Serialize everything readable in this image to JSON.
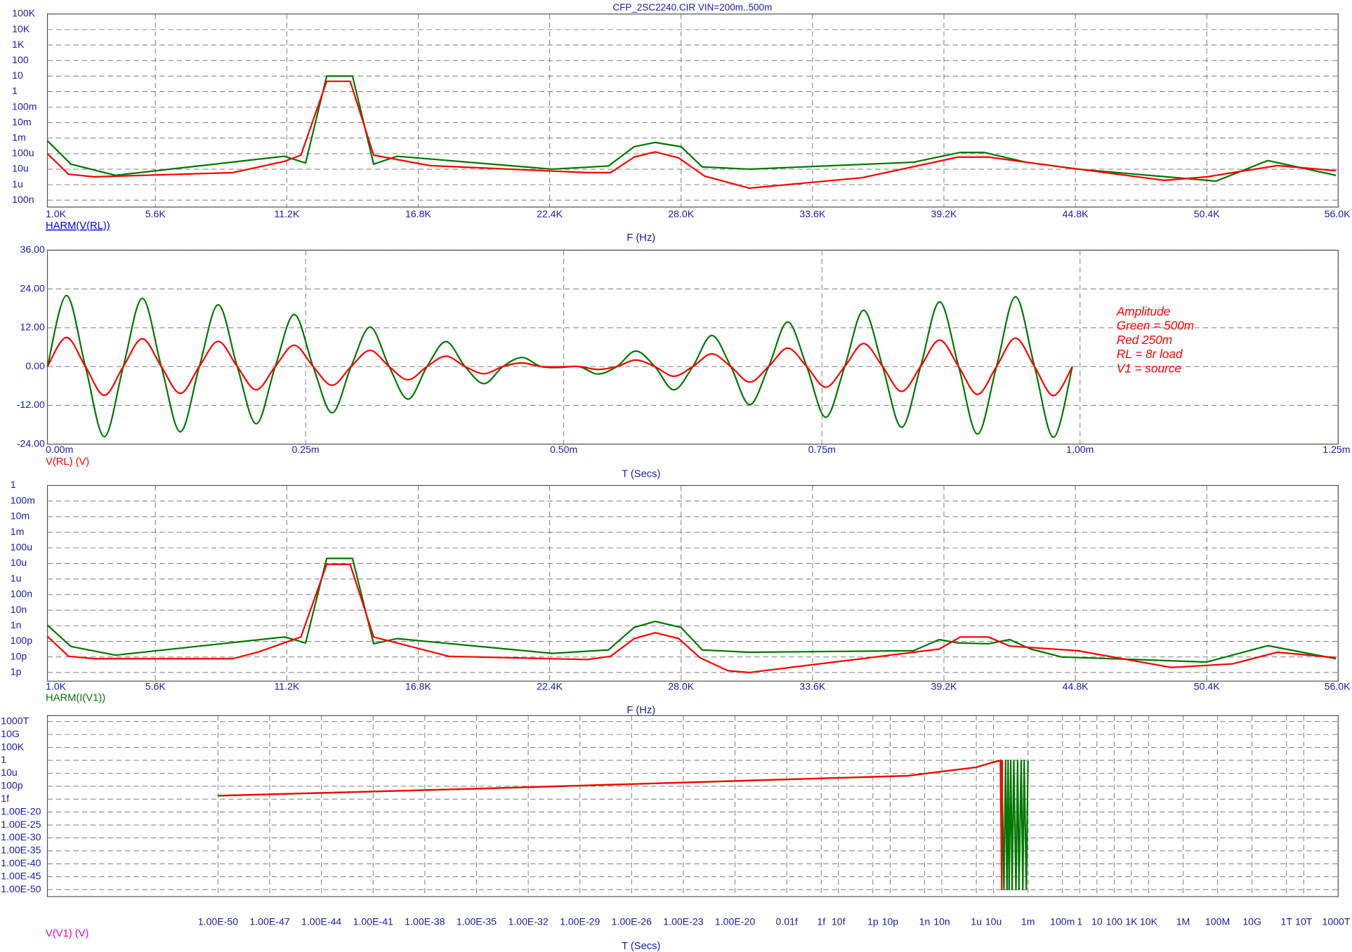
{
  "chart_data": [
    {
      "type": "line",
      "title": "CFP_2SC2240.CIR VIN=200m..500m",
      "x_label": "F (Hz)",
      "trace_label": "HARM(V(RL))",
      "trace_label_color": "#0000ff",
      "log_y": true,
      "grid": true,
      "xlim": [
        1000,
        56000
      ],
      "xticks": [
        {
          "value": 1000,
          "label": "1.0K"
        },
        {
          "value": 5600,
          "label": "5.6K"
        },
        {
          "value": 11200,
          "label": "11.2K"
        },
        {
          "value": 16800,
          "label": "16.8K"
        },
        {
          "value": 22400,
          "label": "22.4K"
        },
        {
          "value": 28000,
          "label": "28.0K"
        },
        {
          "value": 33600,
          "label": "33.6K"
        },
        {
          "value": 39200,
          "label": "39.2K"
        },
        {
          "value": 44800,
          "label": "44.8K"
        },
        {
          "value": 50400,
          "label": "50.4K"
        },
        {
          "value": 56000,
          "label": "56.0K"
        }
      ],
      "ylim": [
        3.6e-08,
        100000
      ],
      "yticks": [
        {
          "value": 100000,
          "label": "100K"
        },
        {
          "value": 10000,
          "label": "10K"
        },
        {
          "value": 1000,
          "label": "1K"
        },
        100,
        10,
        1,
        {
          "value": 0.1,
          "label": "100m"
        },
        {
          "value": 0.01,
          "label": "10m"
        },
        {
          "value": 0.001,
          "label": "1m"
        },
        {
          "value": 0.0001,
          "label": "100u"
        },
        {
          "value": 1e-05,
          "label": "10u"
        },
        {
          "value": 1e-06,
          "label": "1u"
        },
        {
          "value": 1e-07,
          "label": "100n"
        }
      ],
      "series": [
        {
          "color": "#007700",
          "x": [
            1000,
            2000,
            3900,
            11100,
            12000,
            12900,
            14000,
            14900,
            15900,
            22500,
            24900,
            26000,
            26900,
            28000,
            28900,
            30900,
            37900,
            39900,
            40900,
            42700,
            44900,
            50800,
            53000,
            55900
          ],
          "values": [
            0.00068,
            2.1e-05,
            4e-06,
            6.8e-05,
            2.5e-05,
            10,
            10,
            2.1e-05,
            6.8e-05,
            1e-05,
            1.6e-05,
            0.00028,
            0.00053,
            0.00028,
            1.4e-05,
            1e-05,
            2.8e-05,
            0.00012,
            0.00012,
            2.8e-05,
            1e-05,
            1.7e-06,
            3.6e-05,
            4e-06
          ]
        },
        {
          "color": "#ff0000",
          "x": [
            1000,
            1900,
            3000,
            8900,
            11100,
            11800,
            12900,
            13900,
            14900,
            17300,
            24000,
            25000,
            26000,
            26900,
            27900,
            29000,
            30900,
            35700,
            39800,
            41100,
            42700,
            48600,
            50400,
            53400,
            55900
          ],
          "values": [
            0.0001,
            4.7e-06,
            3.2e-06,
            6e-06,
            3.2e-05,
            8e-05,
            4.6,
            4.6,
            8e-05,
            1.7e-05,
            6e-06,
            6e-06,
            6e-05,
            0.00013,
            5.3e-05,
            3.6e-06,
            6e-07,
            2.8e-06,
            6e-05,
            6e-05,
            2.8e-05,
            1.9e-06,
            3.2e-06,
            1.7e-05,
            8e-06
          ]
        }
      ]
    },
    {
      "type": "line",
      "x_label": "T (Secs)",
      "trace_label": "V(RL) (V)",
      "trace_label_color": "#ff0000",
      "log_y": false,
      "grid": true,
      "xlim": [
        0,
        0.00125
      ],
      "xticks": [
        {
          "value": 0,
          "label": "0.00m"
        },
        {
          "value": 0.00025,
          "label": "0.25m"
        },
        {
          "value": 0.0005,
          "label": "0.50m"
        },
        {
          "value": 0.00075,
          "label": "0.75m"
        },
        {
          "value": 0.001,
          "label": "1.00m"
        },
        {
          "value": 0.00125,
          "label": "1.25m"
        }
      ],
      "ylim": [
        -24,
        36
      ],
      "yticks": [
        {
          "value": 36,
          "label": "36.00"
        },
        {
          "value": 24,
          "label": "24.00"
        },
        {
          "value": 12,
          "label": "12.00"
        },
        {
          "value": 0,
          "label": "0.00"
        },
        {
          "value": -12,
          "label": "-12.00"
        },
        {
          "value": -24,
          "label": "-24.00"
        }
      ],
      "annotations": [
        "Amplitude",
        "Green = 500m",
        "Red 250m",
        "RL = 8r load",
        "V1 = source"
      ],
      "annotation_color": "#ff0000",
      "x": [
        0,
        1.84e-05,
        3.68e-05,
        5.51e-05,
        7.35e-05,
        9.19e-05,
        0.0001103,
        0.0001287,
        0.0001471,
        0.0001654,
        0.0001838,
        0.0002022,
        0.0002206,
        0.000239,
        0.0002573,
        0.0002757,
        0.0002941,
        0.0003125,
        0.0003309,
        0.0003493,
        0.0003676,
        0.000386,
        0.0004044,
        0.0004228,
        0.0004412,
        0.0004596,
        0.0004779,
        0.0004963,
        0.0005147,
        0.0005331,
        0.0005515,
        0.0005698,
        0.0005882,
        0.0006066,
        0.000625,
        0.0006434,
        0.0006618,
        0.0006801,
        0.0006985,
        0.0007169,
        0.0007353,
        0.0007537,
        0.0007721,
        0.0007904,
        0.0008088,
        0.0008272,
        0.0008456,
        0.000864,
        0.0008824,
        0.0009007,
        0.0009191,
        0.0009375,
        0.0009559,
        0.0009743,
        0.0009926
      ],
      "series": [
        {
          "color": "#007700",
          "values": [
            0,
            22.0,
            0,
            -21.7,
            0,
            21.1,
            0,
            -20.2,
            0,
            19.1,
            0,
            -17.7,
            0,
            16.1,
            0,
            -14.3,
            0,
            12.2,
            0,
            -10.1,
            0,
            7.7,
            0,
            -5.3,
            0,
            2.8,
            0,
            -0.3,
            0,
            -2.3,
            0,
            4.8,
            0,
            -7.2,
            0,
            9.6,
            0,
            -11.8,
            0,
            13.8,
            0,
            -15.7,
            0,
            17.4,
            0,
            -18.8,
            0,
            20.0,
            0,
            -20.9,
            0,
            21.6,
            0,
            -21.9,
            0
          ]
        },
        {
          "color": "#ff0000",
          "values": [
            0,
            9.0,
            0,
            -8.9,
            0,
            8.6,
            0,
            -8.3,
            0,
            7.8,
            0,
            -7.2,
            0,
            6.6,
            0,
            -5.8,
            0,
            5.0,
            0,
            -4.1,
            0,
            3.2,
            0,
            -2.2,
            0,
            1.1,
            0,
            -0.1,
            0,
            -0.9,
            0,
            2.0,
            0,
            -3.0,
            0,
            3.9,
            0,
            -4.8,
            0,
            5.7,
            0,
            -6.4,
            0,
            7.1,
            0,
            -7.7,
            0,
            8.2,
            0,
            -8.6,
            0,
            8.8,
            0,
            -9.0,
            0
          ]
        }
      ]
    },
    {
      "type": "line",
      "x_label": "F (Hz)",
      "trace_label": "HARM(I(V1))",
      "trace_label_color": "#007700",
      "log_y": true,
      "grid": true,
      "xlim": [
        1000,
        56000
      ],
      "xticks": [
        {
          "value": 1000,
          "label": "1.0K"
        },
        {
          "value": 5600,
          "label": "5.6K"
        },
        {
          "value": 11200,
          "label": "11.2K"
        },
        {
          "value": 16800,
          "label": "16.8K"
        },
        {
          "value": 22400,
          "label": "22.4K"
        },
        {
          "value": 28000,
          "label": "28.0K"
        },
        {
          "value": 33600,
          "label": "33.6K"
        },
        {
          "value": 39200,
          "label": "39.2K"
        },
        {
          "value": 44800,
          "label": "44.8K"
        },
        {
          "value": 50400,
          "label": "50.4K"
        },
        {
          "value": 56000,
          "label": "56.0K"
        }
      ],
      "ylim": [
        2.8e-13,
        1
      ],
      "yticks": [
        1,
        {
          "value": 0.1,
          "label": "100m"
        },
        {
          "value": 0.01,
          "label": "10m"
        },
        {
          "value": 0.001,
          "label": "1m"
        },
        {
          "value": 0.0001,
          "label": "100u"
        },
        {
          "value": 1e-05,
          "label": "10u"
        },
        {
          "value": 1e-06,
          "label": "1u"
        },
        {
          "value": 1e-07,
          "label": "100n"
        },
        {
          "value": 1e-08,
          "label": "10n"
        },
        {
          "value": 1e-09,
          "label": "1n"
        },
        {
          "value": 1e-10,
          "label": "100p"
        },
        {
          "value": 1e-11,
          "label": "10p"
        },
        {
          "value": 1e-12,
          "label": "1p"
        }
      ],
      "series": [
        {
          "color": "#007700",
          "x": [
            1000,
            2000,
            3900,
            11100,
            12000,
            12900,
            14000,
            14900,
            15900,
            22500,
            24900,
            26000,
            26900,
            28000,
            28900,
            30900,
            37900,
            39000,
            39800,
            41100,
            42000,
            42900,
            44200,
            50400,
            53000,
            55900
          ],
          "values": [
            1.1e-09,
            4.7e-11,
            1.3e-11,
            1.9e-10,
            7.9e-11,
            2.1e-05,
            2.1e-05,
            7e-11,
            1.5e-10,
            1.7e-11,
            2.8e-11,
            7.8e-10,
            1.9e-09,
            7.8e-10,
            2.8e-11,
            2e-11,
            2.5e-11,
            1.3e-10,
            7.9e-11,
            7e-11,
            1.3e-10,
            3.2e-11,
            1e-11,
            4.7e-12,
            5.3e-11,
            7.7e-12
          ]
        },
        {
          "color": "#ff0000",
          "x": [
            1000,
            1900,
            3000,
            8900,
            10000,
            11800,
            12900,
            13900,
            14900,
            18100,
            24000,
            25000,
            26000,
            26900,
            27900,
            28800,
            30000,
            30900,
            35700,
            39000,
            39900,
            41100,
            42000,
            44900,
            48900,
            51500,
            53400,
            55900
          ],
          "values": [
            2.1e-10,
            1.1e-11,
            7.7e-12,
            7.7e-12,
            2.1e-11,
            1.9e-10,
            8.8e-06,
            8.8e-06,
            1.9e-10,
            1.1e-11,
            6.8e-12,
            1.1e-11,
            1.5e-10,
            3.6e-10,
            1.5e-10,
            9e-12,
            1.3e-12,
            1e-12,
            7.7e-12,
            3.2e-11,
            1.9e-10,
            1.9e-10,
            5e-11,
            2.5e-11,
            2.1e-12,
            3.6e-12,
            2e-11,
            9e-12
          ]
        }
      ]
    },
    {
      "type": "line",
      "x_label": "T (Secs)",
      "trace_label": "V(V1) (V)",
      "trace_label_color": "#e000e0",
      "log_x": true,
      "log_y": true,
      "grid": true,
      "xlim": [
        1.26e-60,
        1000000000000000.0
      ],
      "xticks": [
        {
          "value": 1e-50,
          "label": "1.00E-50"
        },
        {
          "value": 1e-47,
          "label": "1.00E-47"
        },
        {
          "value": 1e-44,
          "label": "1.00E-44"
        },
        {
          "value": 1e-41,
          "label": "1.00E-41"
        },
        {
          "value": 1e-38,
          "label": "1.00E-38"
        },
        {
          "value": 1e-35,
          "label": "1.00E-35"
        },
        {
          "value": 1e-32,
          "label": "1.00E-32"
        },
        {
          "value": 1e-29,
          "label": "1.00E-29"
        },
        {
          "value": 1e-26,
          "label": "1.00E-26"
        },
        {
          "value": 1e-23,
          "label": "1.00E-23"
        },
        {
          "value": 1e-20,
          "label": "1.00E-20"
        },
        {
          "value": 1e-17,
          "label": "0.01f"
        },
        {
          "value": 1e-15,
          "label": "1f"
        },
        {
          "value": 1e-14,
          "label": "10f"
        },
        {
          "value": 1e-12,
          "label": "1p"
        },
        {
          "value": 1e-11,
          "label": "10p"
        },
        {
          "value": 1e-09,
          "label": "1n"
        },
        {
          "value": 1e-08,
          "label": "10n"
        },
        {
          "value": 1e-06,
          "label": "1u"
        },
        {
          "value": 1e-05,
          "label": "10u"
        },
        {
          "value": 0.001,
          "label": "1m"
        },
        {
          "value": 0.1,
          "label": "100m"
        },
        1,
        10,
        100,
        {
          "value": 1000,
          "label": "1K"
        },
        {
          "value": 10000,
          "label": "10K"
        },
        {
          "value": 1000000,
          "label": "1M"
        },
        {
          "value": 100000000,
          "label": "100M"
        },
        {
          "value": 10000000000,
          "label": "10G"
        },
        {
          "value": 1000000000000,
          "label": "1T"
        },
        {
          "value": 10000000000000,
          "label": "10T"
        },
        {
          "value": 1000000000000000.0,
          "label": "1000T"
        }
      ],
      "ylim": [
        2e-53,
        2e+17
      ],
      "yticks": [
        {
          "value": 1000000000000000.0,
          "label": "1000T"
        },
        {
          "value": 10000000000,
          "label": "10G"
        },
        {
          "value": 100000,
          "label": "100K"
        },
        1,
        {
          "value": 1e-05,
          "label": "10u"
        },
        {
          "value": 1e-10,
          "label": "100p"
        },
        {
          "value": 1e-15,
          "label": "1f"
        },
        {
          "value": 1e-20,
          "label": "1.00E-20"
        },
        {
          "value": 1e-25,
          "label": "1.00E-25"
        },
        {
          "value": 1e-30,
          "label": "1.00E-30"
        },
        {
          "value": 1e-35,
          "label": "1.00E-35"
        },
        {
          "value": 1e-40,
          "label": "1.00E-40"
        },
        {
          "value": 1e-45,
          "label": "1.00E-45"
        },
        {
          "value": 1e-50,
          "label": "1.00E-50"
        }
      ],
      "series": [
        {
          "color": "#007700",
          "x": [
            1e-50,
            1e-35,
            1e-20,
            1e-10,
            1e-06,
            1e-05,
            3e-05,
            4e-05,
            5e-05,
            6e-05,
            7e-05,
            8e-05,
            0.0001,
            0.00012,
            0.00015,
            0.0002,
            0.00025,
            0.0003,
            0.0004,
            0.0005,
            0.0006,
            0.0008,
            0.001
          ],
          "values": [
            2e-14,
            1e-11,
            1e-08,
            1e-06,
            0.002,
            0.2,
            1,
            1e-50,
            1,
            1e-50,
            1,
            1e-50,
            1,
            1e-50,
            1,
            1e-50,
            1,
            1e-50,
            1,
            1e-50,
            1,
            1e-50,
            1
          ]
        },
        {
          "color": "#ff0000",
          "x": [
            1e-50,
            1e-35,
            1e-20,
            1e-10,
            1e-06,
            1e-05,
            2.5e-05,
            3e-05,
            3.2e-05
          ],
          "values": [
            2.2e-14,
            1.1e-11,
            1.1e-08,
            1.1e-06,
            0.0022,
            0.22,
            1,
            1e-50,
            1
          ]
        }
      ]
    }
  ]
}
